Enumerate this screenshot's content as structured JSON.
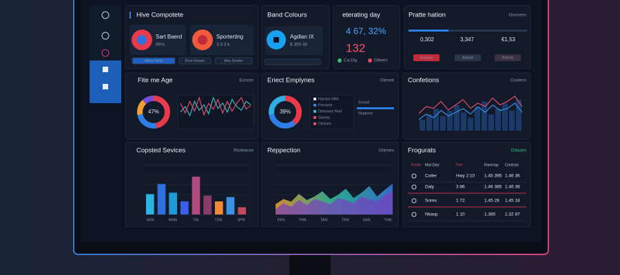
{
  "top": {
    "title": "Hive Compotete",
    "cards": [
      {
        "label": "Sart Baerd",
        "sub": "85%"
      },
      {
        "label": "Sporterting",
        "sub": "3.3.3 k"
      }
    ],
    "buttons": [
      "Attice Derrit",
      "Doot Genper",
      "Wes Soreter"
    ]
  },
  "band": {
    "title": "Band Colours",
    "label": "Agdlan IX",
    "sub": "$ 350 45"
  },
  "rating": {
    "title": "eterating day",
    "value": "4 67, 32%",
    "count": "132",
    "legend": [
      "Ca Diy",
      "Difeert"
    ]
  },
  "profile": {
    "title": "Pratte hation",
    "menu": "Osvoees",
    "stats": [
      "0,302",
      "3,347",
      "€1,53"
    ],
    "tags": [
      "Dosane",
      "Aaemt",
      "Porroe"
    ]
  },
  "age": {
    "title": "Fite me Age",
    "menu": "Eosore",
    "donut_label": "47%",
    "donut": [
      47,
      25,
      16,
      12
    ],
    "lines": [
      [
        40,
        55,
        30,
        70,
        45,
        60,
        35,
        80,
        50,
        65,
        40,
        75,
        55,
        45,
        70,
        60
      ],
      [
        60,
        35,
        65,
        40,
        75,
        30,
        60,
        45,
        70,
        35,
        65,
        40,
        60,
        75,
        45,
        55
      ]
    ]
  },
  "employees": {
    "title": "Eriect Emplynes",
    "menu": "Oleneti",
    "donut_label": "39%",
    "donut": [
      39,
      33,
      28
    ],
    "legend": [
      "Haraso Mtel",
      "Fenraee",
      "Dteoraes Nnd",
      "Sansty",
      "Cletnes"
    ],
    "side": [
      "Soratd",
      "Riadrent"
    ]
  },
  "confections": {
    "title": "Confetions",
    "menu": "Covlersi",
    "bars": [
      30,
      45,
      60,
      40,
      55,
      70,
      50,
      35,
      65,
      80,
      45,
      60,
      75,
      55,
      85
    ],
    "lines": [
      [
        40,
        60,
        55,
        75,
        50,
        65,
        80,
        55,
        70,
        60,
        85,
        65,
        75,
        90,
        60
      ],
      [
        30,
        45,
        35,
        55,
        40,
        50,
        60,
        45,
        65,
        50,
        70,
        55,
        60,
        75,
        50
      ]
    ]
  },
  "services": {
    "title": "Copsted Sevices",
    "menu": "Rtoleacse",
    "bars": [
      28,
      42,
      30,
      18,
      52,
      26,
      18,
      24,
      10
    ],
    "colors": [
      "#2bb3e6",
      "#2f6fe0",
      "#1d9ad8",
      "#3a5fe8",
      "#b04a7a",
      "#8a3b6a",
      "#f08a3a",
      "#3a8fe0",
      "#c04a5a"
    ],
    "x_labels": [
      "SKN",
      "MHN",
      "TIN",
      "TSN",
      "SPN"
    ]
  },
  "reppection": {
    "title": "Reppection",
    "menu": "Dtlenes",
    "areas": [
      [
        20,
        30,
        25,
        40,
        28,
        35,
        45,
        30,
        38,
        50,
        32,
        42,
        55,
        35,
        48,
        60
      ],
      [
        10,
        22,
        15,
        28,
        18,
        30,
        25,
        20,
        32,
        28,
        22,
        35,
        30,
        25,
        38,
        45
      ]
    ],
    "x_labels": [
      "FKN",
      "THN",
      "TAN",
      "TKN",
      "SAN",
      "THN"
    ]
  },
  "frogurats": {
    "title": "Frogurats",
    "menu": "Odiutes",
    "columns": [
      "Fonle",
      "Mat Dey",
      "Fee",
      "Ranroay",
      "Conlrsis"
    ],
    "rows": [
      [
        "Coller",
        "Hwy 2:10",
        "1.45 395",
        "1.46 36"
      ],
      [
        "Daly",
        "3 86",
        "1.46 385",
        "1.46 38"
      ],
      [
        "Sores",
        "1 72",
        "1.45 28",
        "1.45 18"
      ],
      [
        "Nkasp",
        "1 10",
        "1.385",
        "1.32 87"
      ]
    ]
  }
}
